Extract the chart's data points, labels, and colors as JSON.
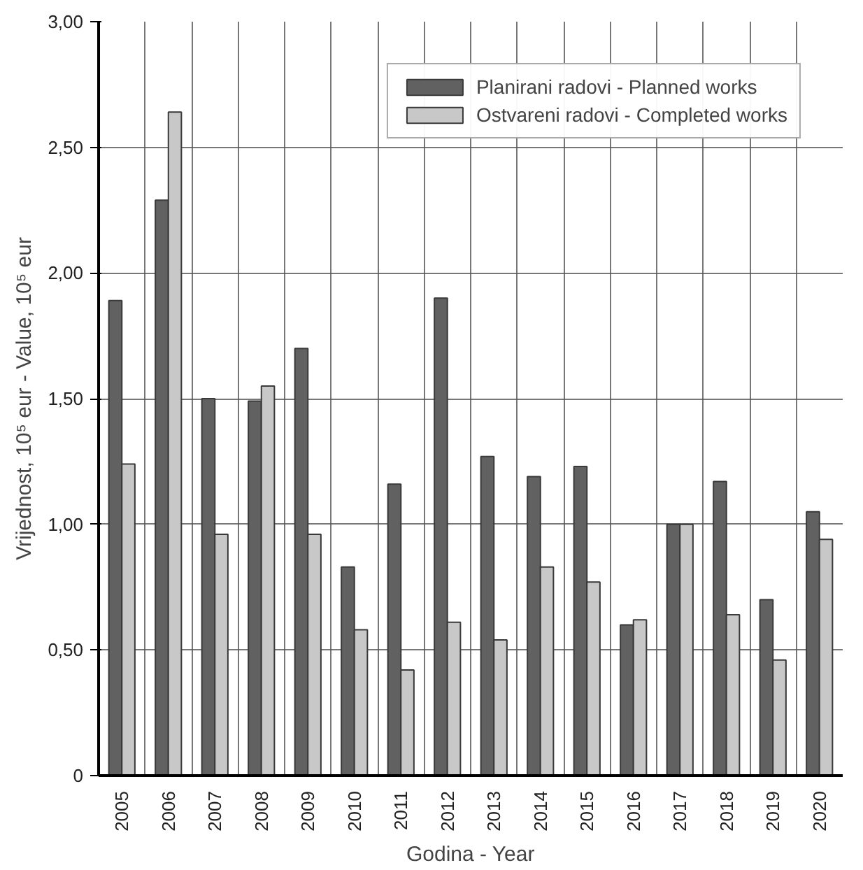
{
  "chart_data": {
    "type": "bar",
    "xlabel": "Godina - Year",
    "ylabel": "Vrijednost, 10⁵ eur - Value, 10⁵ eur",
    "categories": [
      "2005",
      "2006",
      "2007",
      "2008",
      "2009",
      "2010",
      "2011",
      "2012",
      "2013",
      "2014",
      "2015",
      "2016",
      "2017",
      "2018",
      "2019",
      "2020"
    ],
    "series": [
      {
        "name": "Planirani radovi - Planned works",
        "color": "#616161",
        "values": [
          1.89,
          2.29,
          1.5,
          1.49,
          1.7,
          0.83,
          1.16,
          1.9,
          1.27,
          1.19,
          1.23,
          0.6,
          1.0,
          1.17,
          0.7,
          1.05
        ]
      },
      {
        "name": "Ostvareni radovi - Completed works",
        "color": "#c8c8c8",
        "values": [
          1.24,
          2.64,
          0.96,
          1.55,
          0.96,
          0.58,
          0.42,
          0.61,
          0.54,
          0.83,
          0.77,
          0.62,
          1.0,
          0.64,
          0.46,
          0.94
        ]
      }
    ],
    "ylim": [
      0,
      3
    ],
    "yticks": [
      0,
      {
        "value": 0.5,
        "label": "0,50"
      },
      {
        "value": 1,
        "label": "1,00"
      },
      {
        "value": 1.5,
        "label": "1,50"
      },
      {
        "value": 2,
        "label": "2,00"
      },
      {
        "value": 2.5,
        "label": "2,50"
      },
      {
        "value": 3,
        "label": "3,00"
      }
    ],
    "grid": true,
    "legend": "top right"
  }
}
